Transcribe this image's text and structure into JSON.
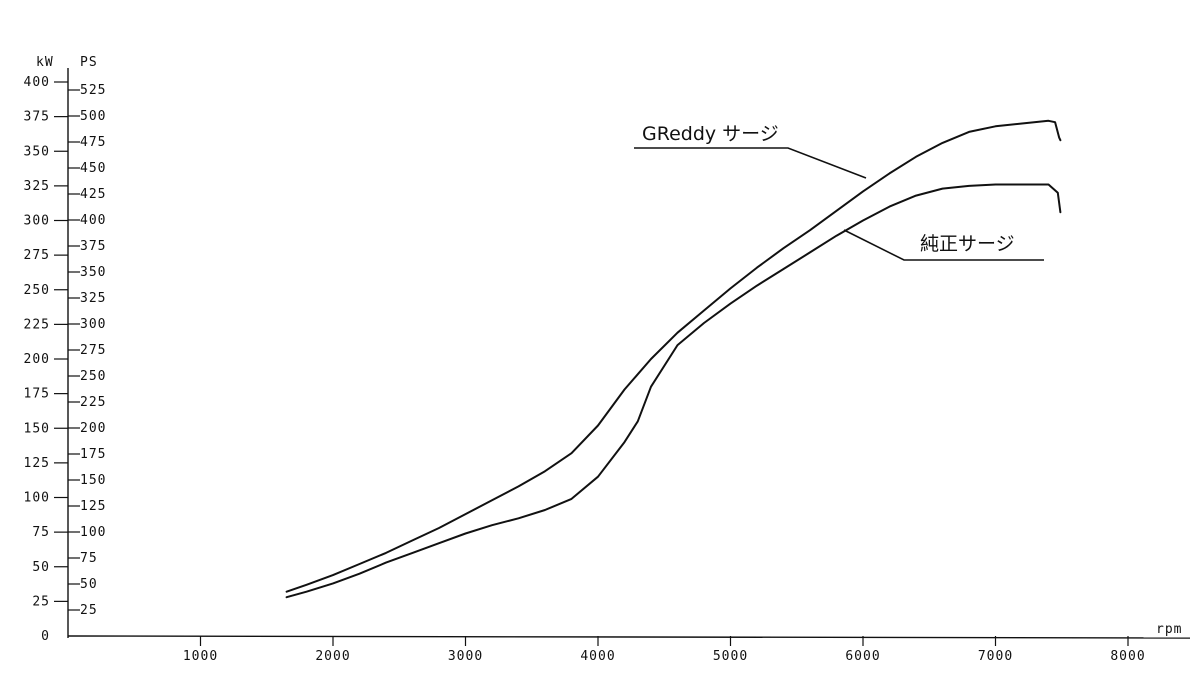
{
  "chart_data": {
    "type": "line",
    "x_unit": "rpm",
    "y_unit_left": "kW",
    "y_unit_right": "PS",
    "xlim": [
      0,
      8400
    ],
    "ylim_kw": [
      0,
      400
    ],
    "ylim_ps": [
      0,
      543.8
    ],
    "x_ticks": [
      1000,
      2000,
      3000,
      4000,
      5000,
      6000,
      7000,
      8000
    ],
    "kw_ticks": [
      0,
      25,
      50,
      75,
      100,
      125,
      150,
      175,
      200,
      225,
      250,
      275,
      300,
      325,
      350,
      375,
      400
    ],
    "ps_ticks": [
      25,
      50,
      75,
      100,
      125,
      150,
      175,
      200,
      225,
      250,
      275,
      300,
      325,
      350,
      375,
      400,
      425,
      450,
      475,
      500,
      525
    ],
    "grid": false,
    "series": [
      {
        "name": "GReddy サージ",
        "x": [
          1650,
          1800,
          2000,
          2200,
          2400,
          2600,
          2800,
          3000,
          3200,
          3400,
          3600,
          3800,
          4000,
          4200,
          4400,
          4600,
          4800,
          5000,
          5200,
          5400,
          5600,
          5800,
          6000,
          6200,
          6400,
          6600,
          6800,
          7000,
          7200,
          7400,
          7450,
          7480,
          7490
        ],
        "values": [
          32,
          37,
          44,
          52,
          60,
          69,
          78,
          88,
          98,
          108,
          119,
          132,
          152,
          178,
          200,
          219,
          235,
          251,
          266,
          280,
          293,
          307,
          321,
          334,
          346,
          356,
          364,
          368,
          370,
          372,
          371,
          360,
          358
        ]
      },
      {
        "name": "純正サージ",
        "x": [
          1650,
          1800,
          2000,
          2200,
          2400,
          2600,
          2800,
          3000,
          3200,
          3400,
          3600,
          3800,
          4000,
          4200,
          4300,
          4400,
          4600,
          4800,
          5000,
          5200,
          5400,
          5600,
          5800,
          6000,
          6200,
          6400,
          6600,
          6800,
          7000,
          7200,
          7400,
          7470,
          7490
        ],
        "values": [
          28,
          32,
          38,
          45,
          53,
          60,
          67,
          74,
          80,
          85,
          91,
          99,
          115,
          140,
          155,
          180,
          210,
          226,
          240,
          253,
          265,
          277,
          289,
          300,
          310,
          318,
          323,
          325,
          326,
          326,
          326,
          320,
          306
        ]
      }
    ],
    "annotations": [
      "GReddy サージ",
      "純正サージ"
    ]
  }
}
